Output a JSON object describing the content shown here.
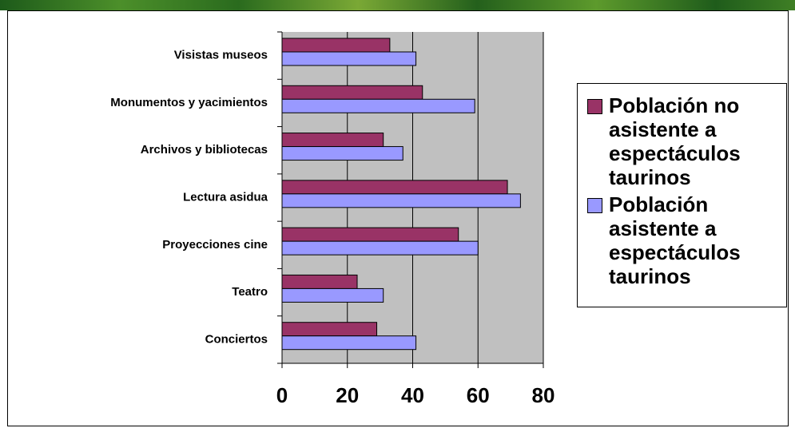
{
  "chart_data": {
    "type": "barh",
    "categories": [
      "Visistas museos",
      "Monumentos y yacimientos",
      "Archivos y bibliotecas",
      "Lectura asidua",
      "Proyecciones cine",
      "Teatro",
      "Conciertos"
    ],
    "series": [
      {
        "name": "Población no asistente a espectáculos taurinos",
        "color": "#993366",
        "values": [
          33,
          43,
          31,
          69,
          54,
          23,
          29
        ]
      },
      {
        "name": "Población asistente a espectáculos taurinos",
        "color": "#9999ff",
        "values": [
          41,
          59,
          37,
          73,
          60,
          31,
          41
        ]
      }
    ],
    "xlim": [
      0,
      80
    ],
    "xticks": [
      0,
      20,
      40,
      60,
      80
    ],
    "grid": true,
    "legend": "right"
  }
}
